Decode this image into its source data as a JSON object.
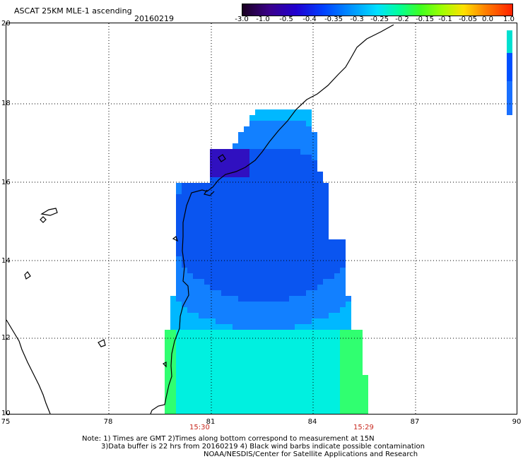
{
  "header": {
    "title": "ASCAT 25KM MLE-1 ascending",
    "date": "20160219"
  },
  "colorbar": {
    "ticks": [
      "-3.0",
      "-1.0",
      "-0.5",
      "-0.4",
      "-0.35",
      "-0.3",
      "-0.25",
      "-0.2",
      "-0.15",
      "-0.1",
      "-0.05",
      "0.0",
      "1.0"
    ],
    "colors": [
      "#1a0020",
      "#3a008a",
      "#2000d0",
      "#0040ff",
      "#0090ff",
      "#00e0ff",
      "#00ff9a",
      "#40ff20",
      "#a0ff00",
      "#ffe000",
      "#ff8000",
      "#ff2000"
    ]
  },
  "axes": {
    "lat_labels": [
      "20",
      "18",
      "16",
      "14",
      "12",
      "10"
    ],
    "lon_labels": [
      "75",
      "78",
      "81",
      "84",
      "87",
      "90"
    ]
  },
  "time_labels": {
    "left": "15:30",
    "right": "15:29"
  },
  "footer": {
    "line1": "Note: 1) Times are GMT 2)Times along bottom correspond to measurement at 15N",
    "line2": "3)Data buffer is 22 hrs from 20160219 4) Black wind barbs indicate possible contamination",
    "line3": "NOAA/NESDIS/Center for Satellite Applications and Research"
  }
}
